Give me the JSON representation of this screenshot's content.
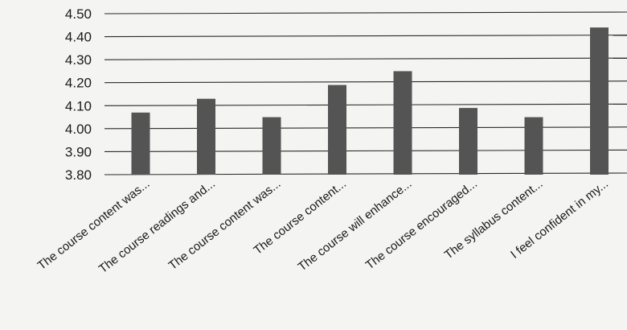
{
  "chart_data": {
    "type": "bar",
    "categories": [
      "The course content was...",
      "The course readings and...",
      "The course content was...",
      "The course content...",
      "The course will enhance...",
      "The course encouraged...",
      "The syllabus content...",
      "I feel confident in my..."
    ],
    "values": [
      4.07,
      4.13,
      4.05,
      4.19,
      4.25,
      4.09,
      4.05,
      4.44
    ],
    "yticks": [
      "3.80",
      "3.90",
      "4.00",
      "4.10",
      "4.20",
      "4.30",
      "4.40",
      "4.50"
    ],
    "ylim": [
      3.8,
      4.5
    ],
    "title": "",
    "xlabel": "",
    "ylabel": "",
    "grid": true,
    "legend": "none",
    "colors": {
      "bar": "#545454",
      "grid": "#2a2a2a",
      "background": "#f4f4f2"
    }
  }
}
